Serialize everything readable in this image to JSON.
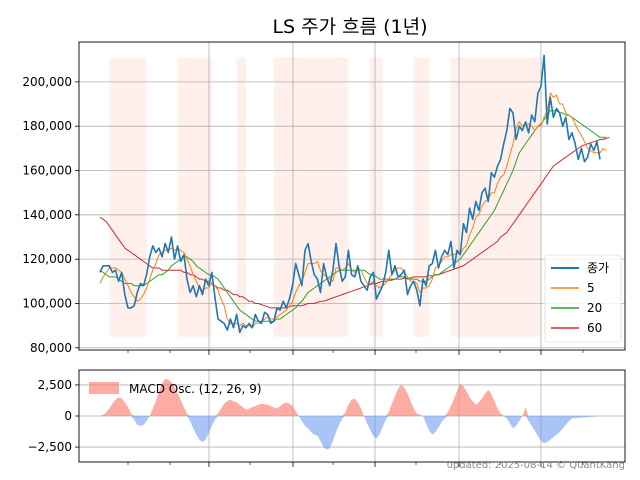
{
  "chart_data": [
    {
      "type": "line",
      "title": "LS 주가 흐름 (1년)",
      "xlabel": "",
      "ylabel": "",
      "ylim": [
        79000,
        218000
      ],
      "yticks": [
        80000,
        100000,
        120000,
        140000,
        160000,
        180000,
        200000
      ],
      "ytick_labels": [
        "80,000",
        "100,000",
        "120,000",
        "140,000",
        "160,000",
        "180,000",
        "200,000"
      ],
      "grid": true,
      "legend_position": "lower-right",
      "series": [
        {
          "name": "종가",
          "color": "#1f77b4",
          "values": [
            114000,
            117000,
            117000,
            117000,
            114000,
            115000,
            110000,
            114000,
            104000,
            98000,
            98000,
            99000,
            105000,
            109000,
            108000,
            113000,
            121000,
            126000,
            123000,
            125000,
            121000,
            127000,
            123000,
            130000,
            120000,
            126000,
            119000,
            122000,
            111000,
            105000,
            108000,
            103000,
            108000,
            104000,
            111000,
            108000,
            114000,
            103000,
            93000,
            92000,
            91000,
            88000,
            93000,
            89000,
            95000,
            87000,
            90000,
            89000,
            91000,
            89000,
            95000,
            92000,
            91000,
            96000,
            95000,
            91000,
            92000,
            98000,
            97000,
            101000,
            98000,
            102000,
            108000,
            118000,
            113000,
            108000,
            124000,
            127000,
            119000,
            113000,
            111000,
            105000,
            118000,
            112000,
            108000,
            115000,
            127000,
            117000,
            110000,
            112000,
            124000,
            113000,
            112000,
            117000,
            110000,
            108000,
            106000,
            112000,
            114000,
            102000,
            105000,
            108000,
            114000,
            124000,
            113000,
            117000,
            112000,
            113000,
            115000,
            104000,
            108000,
            110000,
            106000,
            99000,
            111000,
            108000,
            117000,
            118000,
            124000,
            116000,
            121000,
            124000,
            122000,
            128000,
            116000,
            124000,
            122000,
            136000,
            132000,
            143000,
            138000,
            146000,
            142000,
            150000,
            152000,
            146000,
            159000,
            157000,
            162000,
            165000,
            172000,
            178000,
            188000,
            186000,
            174000,
            180000,
            178000,
            182000,
            177000,
            185000,
            182000,
            195000,
            198000,
            212000,
            181000,
            193000,
            184000,
            188000,
            186000,
            180000,
            184000,
            174000,
            177000,
            172000,
            165000,
            170000,
            164000,
            166000,
            172000,
            169000,
            173000,
            165000
          ]
        },
        {
          "name": "5",
          "color": "#ff7f0e",
          "values": [
            109000,
            112000,
            114000,
            116000,
            116000,
            116000,
            115000,
            114000,
            111000,
            108000,
            105000,
            103000,
            101000,
            102000,
            104000,
            107000,
            111000,
            115000,
            118000,
            122000,
            123000,
            124000,
            124000,
            125000,
            124000,
            125000,
            124000,
            123000,
            120000,
            117000,
            113000,
            110000,
            107000,
            106000,
            107000,
            107000,
            109000,
            108000,
            106000,
            102000,
            99000,
            93000,
            91000,
            91000,
            91000,
            90000,
            91000,
            90000,
            90000,
            89000,
            91000,
            91000,
            92000,
            93000,
            94000,
            93000,
            93000,
            94000,
            95000,
            96000,
            97000,
            99000,
            101000,
            105000,
            108000,
            110000,
            114000,
            118000,
            118000,
            118000,
            119000,
            115000,
            113000,
            112000,
            111000,
            110000,
            116000,
            116000,
            115000,
            116000,
            118000,
            115000,
            114000,
            116000,
            115000,
            112000,
            109000,
            109000,
            110000,
            108000,
            107000,
            108000,
            109000,
            111000,
            113000,
            115000,
            116000,
            116000,
            114000,
            112000,
            110000,
            110000,
            109000,
            105000,
            107000,
            107000,
            108000,
            111000,
            116000,
            117000,
            119000,
            121000,
            121000,
            122000,
            122000,
            123000,
            122000,
            125000,
            126000,
            131000,
            134000,
            139000,
            140000,
            144000,
            146000,
            147000,
            150000,
            150000,
            154000,
            157000,
            158000,
            162000,
            167000,
            172000,
            179000,
            182000,
            180000,
            181000,
            181000,
            180000,
            178000,
            180000,
            180000,
            184000,
            187000,
            195000,
            193000,
            194000,
            190000,
            190000,
            186000,
            185000,
            184000,
            181000,
            178000,
            176000,
            173000,
            170000,
            169000,
            168000,
            168000,
            168000,
            170000,
            169000
          ]
        },
        {
          "name": "20",
          "color": "#2ca02c",
          "values": [
            115000,
            114000,
            113000,
            112000,
            112000,
            112000,
            111000,
            110000,
            109000,
            109000,
            109000,
            108000,
            108000,
            108000,
            108000,
            109000,
            110000,
            111000,
            112000,
            113000,
            113000,
            114000,
            115000,
            117000,
            118000,
            119000,
            120000,
            121000,
            121000,
            120000,
            119000,
            117000,
            116000,
            115000,
            114000,
            113000,
            113000,
            112000,
            111000,
            109000,
            107000,
            105000,
            103000,
            101000,
            99000,
            97000,
            96000,
            95000,
            94000,
            93000,
            92000,
            92000,
            92000,
            92000,
            92000,
            92000,
            92000,
            93000,
            93000,
            94000,
            95000,
            96000,
            97000,
            98000,
            100000,
            101000,
            103000,
            105000,
            106000,
            107000,
            108000,
            109000,
            110000,
            111000,
            112000,
            113000,
            114000,
            115000,
            115000,
            115000,
            115000,
            115000,
            115000,
            115000,
            115000,
            115000,
            114000,
            113000,
            113000,
            112000,
            111000,
            111000,
            111000,
            111000,
            111000,
            111000,
            112000,
            112000,
            112000,
            111000,
            111000,
            111000,
            111000,
            110000,
            110000,
            110000,
            111000,
            112000,
            113000,
            113000,
            114000,
            115000,
            116000,
            117000,
            118000,
            119000,
            120000,
            122000,
            124000,
            126000,
            128000,
            130000,
            132000,
            134000,
            136000,
            138000,
            140000,
            142000,
            145000,
            148000,
            151000,
            154000,
            157000,
            160000,
            164000,
            168000,
            170000,
            172000,
            174000,
            176000,
            178000,
            180000,
            181000,
            183000,
            185000,
            187000,
            187000,
            187000,
            186000,
            186000,
            185000,
            185000,
            184000,
            183000,
            182000,
            181000,
            180000,
            179000,
            178000,
            177000,
            176000,
            175000,
            175000,
            175000
          ]
        },
        {
          "name": "60",
          "color": "#d62728",
          "values": [
            139000,
            138000,
            137000,
            135000,
            133000,
            131000,
            129000,
            127000,
            125000,
            124000,
            123000,
            122000,
            121000,
            120000,
            119000,
            118000,
            117000,
            116000,
            116000,
            116000,
            115000,
            115000,
            115000,
            115000,
            115000,
            115000,
            115000,
            114000,
            114000,
            113000,
            113000,
            112000,
            111000,
            111000,
            110000,
            110000,
            109000,
            108000,
            107000,
            107000,
            106000,
            106000,
            105000,
            104000,
            104000,
            103000,
            103000,
            102000,
            101000,
            101000,
            100000,
            100000,
            99500,
            99000,
            98500,
            98000,
            98000,
            98000,
            98000,
            98000,
            98000,
            98500,
            99000,
            99000,
            99000,
            99000,
            99500,
            100000,
            100000,
            100000,
            100500,
            101000,
            101000,
            101500,
            102000,
            102500,
            103000,
            103500,
            104000,
            104500,
            105000,
            105500,
            106000,
            106500,
            107000,
            107500,
            108000,
            108500,
            109000,
            109000,
            109500,
            110000,
            110000,
            110500,
            110500,
            111000,
            111000,
            111000,
            111500,
            111500,
            111500,
            112000,
            112000,
            112000,
            112000,
            112000,
            112500,
            112500,
            113000,
            113000,
            113500,
            114000,
            114500,
            115000,
            115500,
            116000,
            116500,
            117000,
            118000,
            119000,
            120000,
            121000,
            122000,
            123000,
            124000,
            125000,
            126000,
            127000,
            128000,
            130000,
            131000,
            132000,
            134000,
            136000,
            138000,
            140000,
            142000,
            144000,
            146000,
            148000,
            150000,
            152000,
            154000,
            156000,
            158000,
            160000,
            162000,
            163000,
            164000,
            165000,
            166000,
            167000,
            168000,
            169000,
            170000,
            171000,
            171500,
            172000,
            172500,
            173000,
            173500,
            174000,
            174000,
            174500,
            175000
          ]
        }
      ]
    },
    {
      "type": "area",
      "ylim": [
        -3700,
        3700
      ],
      "yticks": [
        -2500,
        0,
        2500
      ],
      "ytick_labels": [
        "−2,500",
        "0",
        "2,500"
      ],
      "grid": true,
      "legend_position": "top-left",
      "positive_color": "#fa8072",
      "negative_color": "#6495ed",
      "series": [
        {
          "name": "MACD Osc. (12, 26, 9)",
          "values": [
            0,
            100,
            300,
            600,
            1000,
            1300,
            1500,
            1400,
            1100,
            700,
            200,
            -300,
            -700,
            -800,
            -700,
            -400,
            0,
            600,
            1200,
            2000,
            2600,
            3000,
            2900,
            2700,
            2300,
            1800,
            1300,
            700,
            200,
            -400,
            -1000,
            -1500,
            -1900,
            -2100,
            -1900,
            -1400,
            -800,
            -300,
            200,
            600,
            1000,
            1200,
            1300,
            1200,
            1100,
            900,
            700,
            500,
            600,
            700,
            800,
            900,
            1000,
            950,
            900,
            800,
            700,
            600,
            800,
            1000,
            1100,
            1000,
            800,
            400,
            0,
            -400,
            -800,
            -1000,
            -1300,
            -1500,
            -1600,
            -2000,
            -2500,
            -2700,
            -2600,
            -2000,
            -1300,
            -700,
            -200,
            300,
            900,
            1300,
            1400,
            1100,
            600,
            0,
            -600,
            -1100,
            -1600,
            -1800,
            -1500,
            -900,
            -300,
            300,
            1000,
            1600,
            2200,
            2500,
            2300,
            1800,
            1200,
            600,
            200,
            100,
            0,
            -600,
            -1200,
            -1500,
            -1300,
            -900,
            -500,
            -200,
            300,
            800,
            1400,
            2000,
            2600,
            2400,
            2000,
            1500,
            1200,
            900,
            1100,
            1400,
            1800,
            2100,
            1800,
            1200,
            600,
            200,
            0,
            -200,
            -600,
            -1000,
            -800,
            -400,
            0,
            700,
            -400,
            -800,
            -1200,
            -1600,
            -2000,
            -2200,
            -2100,
            -1900,
            -1700,
            -1500,
            -1300,
            -1000,
            -700,
            -400,
            -200
          ]
        }
      ]
    }
  ],
  "shaded_bands": [
    [
      3,
      15
    ],
    [
      25,
      36
    ],
    [
      44,
      47
    ],
    [
      56,
      80
    ],
    [
      87,
      91
    ],
    [
      101,
      106
    ],
    [
      113,
      142
    ]
  ],
  "band_color": "#fff0ec",
  "footer": "updated: 2025-08-14 © QuantKang"
}
